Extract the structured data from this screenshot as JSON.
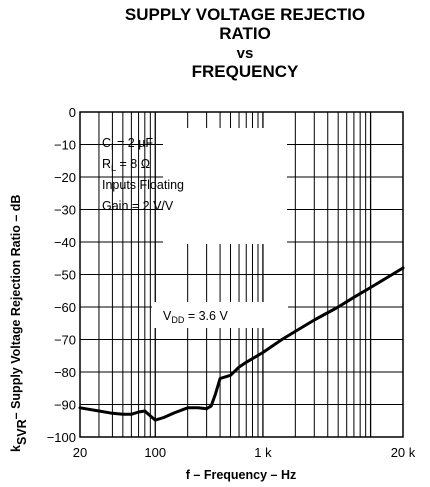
{
  "chart_data": {
    "type": "line",
    "title_lines": [
      "SUPPLY VOLTAGE REJECTIO",
      "RATIO",
      "vs",
      "FREQUENCY"
    ],
    "xlabel": "f – Frequency – Hz",
    "ylabel_prefix": "k",
    "ylabel_sub": "SVR",
    "ylabel_rest": "– Supply Voltage Rejection Ratio – dB",
    "xscale": "log",
    "xlim": [
      20,
      20000
    ],
    "ylim": [
      -100,
      0
    ],
    "x_ticks": [
      {
        "value": 20,
        "label": "20"
      },
      {
        "value": 100,
        "label": "100"
      },
      {
        "value": 1000,
        "label": "1 k"
      },
      {
        "value": 20000,
        "label": "20 k"
      }
    ],
    "y_ticks": [
      0,
      -10,
      -20,
      -30,
      -40,
      -50,
      -60,
      -70,
      -80,
      -90,
      -100
    ],
    "y_tick_labels": [
      "0",
      "−10",
      "−20",
      "−30",
      "−40",
      "−50",
      "−60",
      "−70",
      "−80",
      "−90",
      "−100"
    ],
    "grid": true,
    "conditions": {
      "ci_main": "C",
      "ci_sub": "I",
      "ci_val": " = 2 µF",
      "rl_main": "R",
      "rl_sub": "L",
      "rl_val": " = 8 Ω",
      "inputs": "Inputs Floating",
      "gain": "Gain = 2 V/V"
    },
    "series_label": {
      "main": "V",
      "sub": "DD",
      "rest": " = 3.6 V"
    },
    "series": [
      {
        "x": [
          20,
          30,
          40,
          50,
          60,
          70,
          80,
          90,
          100,
          120,
          150,
          200,
          250,
          300,
          330,
          360,
          400,
          500,
          600,
          700,
          1000,
          1500,
          2000,
          3000,
          5000,
          7000,
          10000,
          15000,
          20000
        ],
        "y": [
          -91,
          -92,
          -92.7,
          -93,
          -93,
          -92.3,
          -92,
          -93.5,
          -94.8,
          -94,
          -92.6,
          -91,
          -91,
          -91.3,
          -90.5,
          -87,
          -82,
          -81,
          -78.5,
          -77,
          -74,
          -70,
          -67.5,
          -64,
          -60,
          -57,
          -54,
          -50.5,
          -48
        ]
      }
    ]
  }
}
